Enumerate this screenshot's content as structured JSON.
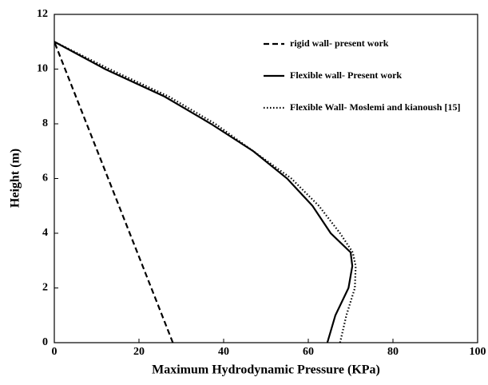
{
  "chart_data": {
    "type": "line",
    "xlabel": "Maximum Hydrodynamic  Pressure  (KPa)",
    "ylabel": "Height  (m)",
    "xlim": [
      0,
      100
    ],
    "xticks": [
      0,
      20,
      40,
      60,
      80,
      100
    ],
    "ylim": [
      0,
      12
    ],
    "yticks": [
      0,
      2,
      4,
      6,
      8,
      10,
      12
    ],
    "grid": false,
    "legend": "upper right",
    "series": [
      {
        "name": "rigid wall- present work",
        "color": "#000000",
        "dash": "dashed",
        "x": [
          28,
          0
        ],
        "values": [
          0,
          11
        ]
      },
      {
        "name": "Flexible wall- Present work",
        "color": "#000000",
        "dash": "solid",
        "x": [
          64.5,
          66.4,
          69.5,
          70.4,
          70,
          65.3,
          61,
          55,
          47,
          37,
          26,
          12,
          0
        ],
        "values": [
          0,
          1,
          2,
          2.8,
          3.3,
          4,
          5,
          6,
          7,
          8,
          9,
          10,
          11
        ]
      },
      {
        "name": "Flexible Wall- Moslemi and kianoush [15]",
        "color": "#000000",
        "dash": "dotted",
        "x": [
          67.5,
          69,
          71,
          71.2,
          70.5,
          67.5,
          62.5,
          56,
          47,
          38,
          27,
          13,
          0
        ],
        "values": [
          0,
          1,
          2,
          2.8,
          3.3,
          4,
          5,
          6,
          7,
          8,
          9,
          10,
          11
        ]
      }
    ]
  }
}
